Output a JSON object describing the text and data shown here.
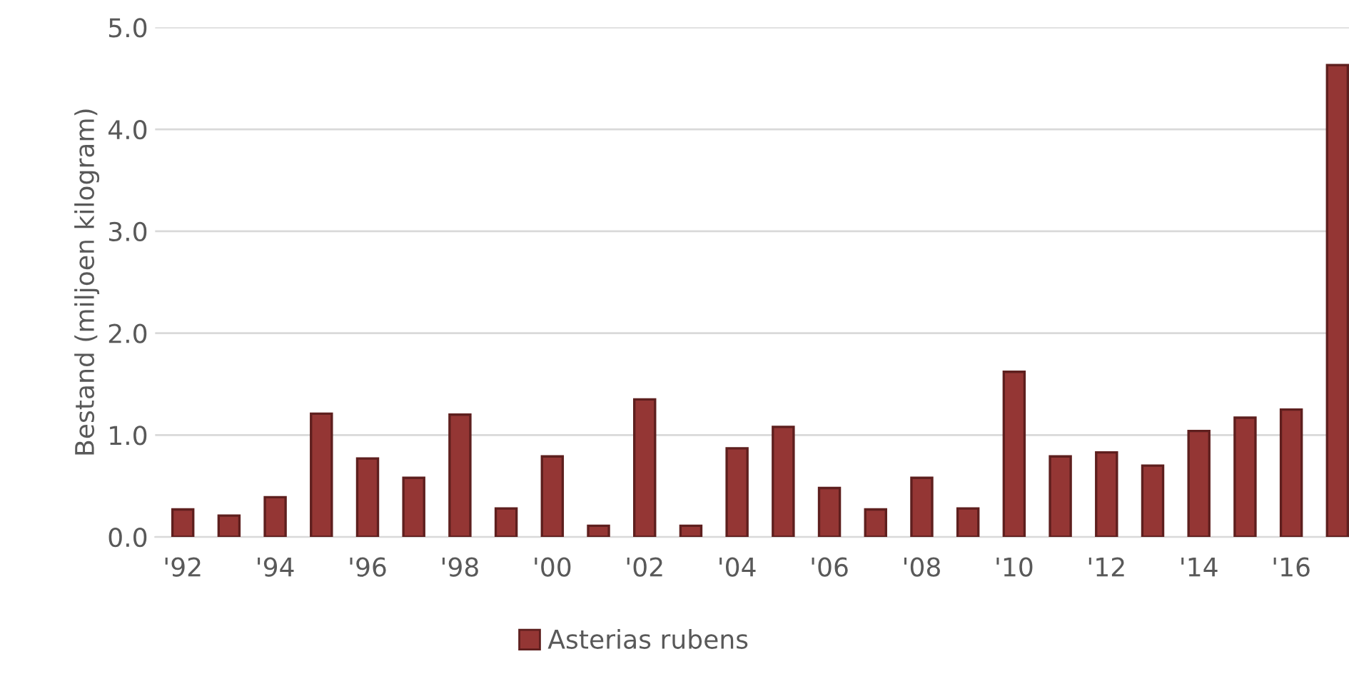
{
  "chart_data": {
    "type": "bar",
    "ylabel": "Bestand (miljoen kilogram)",
    "categories": [
      "'92",
      null,
      "'94",
      null,
      "'96",
      null,
      "'98",
      null,
      "'00",
      null,
      "'02",
      null,
      "'04",
      null,
      "'06",
      null,
      "'08",
      null,
      "'10",
      null,
      "'12",
      null,
      "'14",
      null,
      "'16",
      null
    ],
    "series": [
      {
        "name": "Asterias rubens",
        "color": "#943634",
        "values": [
          0.27,
          0.21,
          0.39,
          1.21,
          0.77,
          0.58,
          1.2,
          0.28,
          0.79,
          0.11,
          1.35,
          0.11,
          0.87,
          1.08,
          0.48,
          0.27,
          0.58,
          0.28,
          1.62,
          0.79,
          0.83,
          0.7,
          1.04,
          1.17,
          1.25,
          4.63
        ]
      }
    ],
    "ylim": [
      0,
      5
    ],
    "yticks": [
      {
        "value": 0,
        "label": "0.0"
      },
      {
        "value": 1,
        "label": "1.0"
      },
      {
        "value": 2,
        "label": "2.0"
      },
      {
        "value": 3,
        "label": "3.0"
      },
      {
        "value": 4,
        "label": "4.0"
      },
      {
        "value": 5,
        "label": "5.0"
      }
    ],
    "grid": "y",
    "legend": "bottom"
  }
}
